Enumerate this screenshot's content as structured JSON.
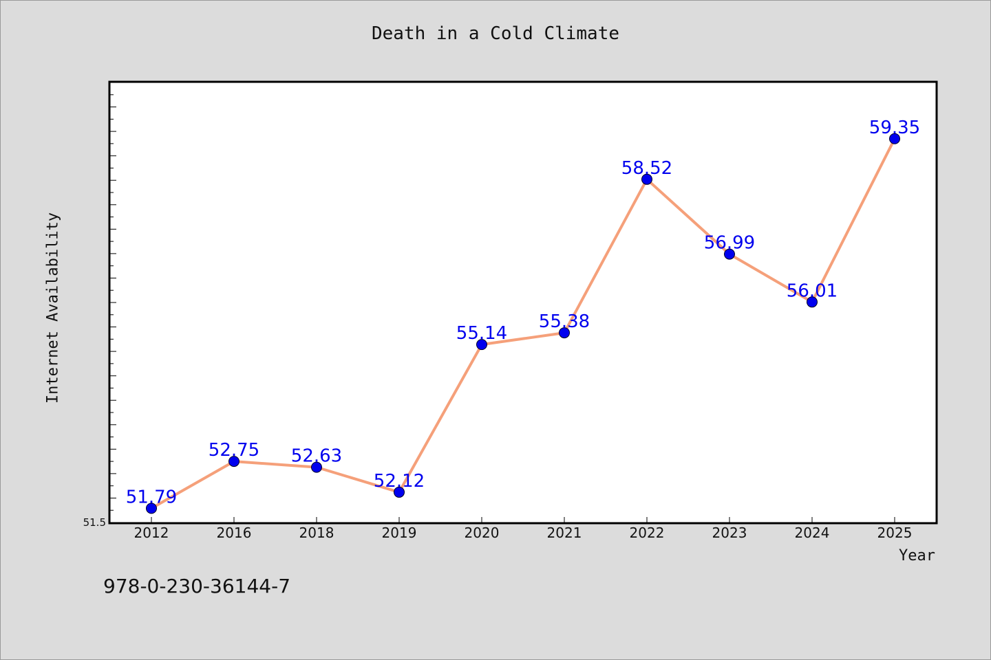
{
  "chart_data": {
    "type": "line",
    "title": "Death in a Cold Climate",
    "xlabel": "Year",
    "ylabel": "Internet Availability",
    "categories": [
      "2012",
      "2016",
      "2018",
      "2019",
      "2020",
      "2021",
      "2022",
      "2023",
      "2024",
      "2025"
    ],
    "series": [
      {
        "values": [
          51.79,
          52.75,
          52.63,
          52.12,
          55.14,
          55.38,
          58.52,
          56.99,
          56.01,
          59.35
        ]
      }
    ],
    "ylim": [
      51.5,
      60.5
    ],
    "y_tick_labels": [
      "51.5"
    ],
    "data_labels": [
      "51.79",
      "52.75",
      "52.63",
      "52.12",
      "55.14",
      "55.38",
      "58.52",
      "56.99",
      "56.01",
      "59.35"
    ],
    "grid": false,
    "legend": "none",
    "colors": {
      "line": "#f5a07a",
      "marker": "#0000ee",
      "label": "#0000ee",
      "background": "#dcdcdc",
      "plot_background": "#ffffff"
    }
  },
  "footer": {
    "isbn": "978-0-230-36144-7"
  }
}
